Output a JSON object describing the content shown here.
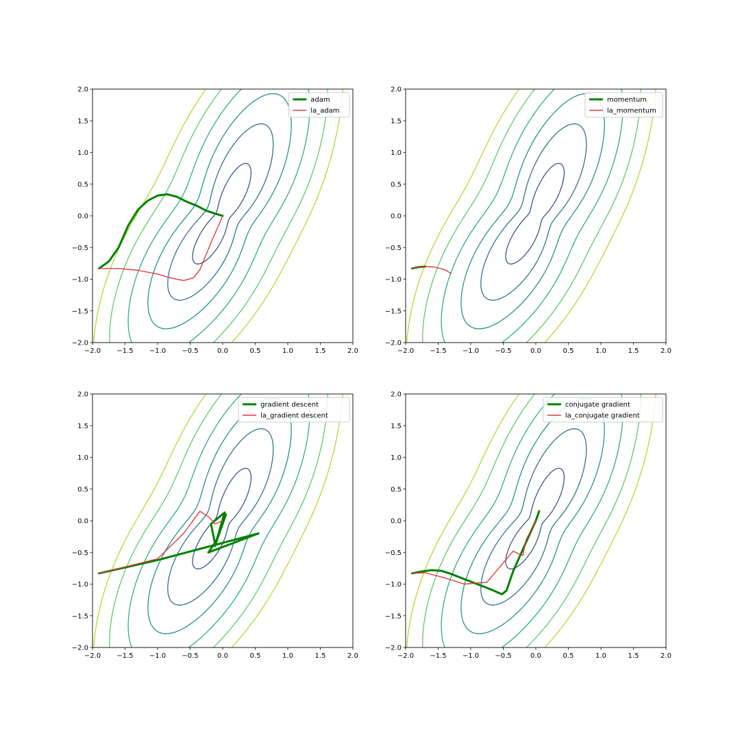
{
  "chart_data": [
    {
      "type": "line",
      "subtype": "contour-with-trajectories",
      "xlim": [
        -2.0,
        2.0
      ],
      "ylim": [
        -2.0,
        2.0
      ],
      "xticks": [
        "−2.0",
        "−1.5",
        "−1.0",
        "−0.5",
        "0.0",
        "0.5",
        "1.0",
        "1.5",
        "2.0"
      ],
      "yticks": [
        "−2.0",
        "−1.5",
        "−1.0",
        "−0.5",
        "0.0",
        "0.5",
        "1.0",
        "1.5",
        "2.0"
      ],
      "grid": false,
      "legend_position": "top-right",
      "series": [
        {
          "name": "adam",
          "color": "#008000",
          "points": [
            [
              -1.9,
              -0.83
            ],
            [
              -1.75,
              -0.72
            ],
            [
              -1.6,
              -0.5
            ],
            [
              -1.45,
              -0.15
            ],
            [
              -1.3,
              0.1
            ],
            [
              -1.15,
              0.24
            ],
            [
              -1.0,
              0.32
            ],
            [
              -0.85,
              0.34
            ],
            [
              -0.7,
              0.3
            ],
            [
              -0.55,
              0.22
            ],
            [
              -0.4,
              0.16
            ],
            [
              -0.25,
              0.08
            ],
            [
              -0.1,
              0.03
            ],
            [
              0.0,
              0.0
            ]
          ]
        },
        {
          "name": "la_adam",
          "color": "#e03a3a",
          "points": [
            [
              -1.9,
              -0.83
            ],
            [
              -1.6,
              -0.83
            ],
            [
              -1.3,
              -0.86
            ],
            [
              -1.0,
              -0.92
            ],
            [
              -0.8,
              -0.98
            ],
            [
              -0.6,
              -1.02
            ],
            [
              -0.45,
              -0.98
            ],
            [
              -0.35,
              -0.85
            ],
            [
              -0.25,
              -0.6
            ],
            [
              -0.15,
              -0.35
            ],
            [
              -0.05,
              -0.12
            ],
            [
              0.0,
              0.0
            ]
          ]
        }
      ]
    },
    {
      "type": "line",
      "subtype": "contour-with-trajectories",
      "xlim": [
        -2.0,
        2.0
      ],
      "ylim": [
        -2.0,
        2.0
      ],
      "xticks": [
        "−2.0",
        "−1.5",
        "−1.0",
        "−0.5",
        "0.0",
        "0.5",
        "1.0",
        "1.5",
        "2.0"
      ],
      "yticks": [
        "−2.0",
        "−1.5",
        "−1.0",
        "−0.5",
        "0.0",
        "0.5",
        "1.0",
        "1.5",
        "2.0"
      ],
      "grid": false,
      "legend_position": "top-right",
      "series": [
        {
          "name": "momentum",
          "color": "#008000",
          "points": [
            [
              -1.9,
              -0.83
            ],
            [
              -1.8,
              -0.81
            ],
            [
              -1.7,
              -0.8
            ]
          ]
        },
        {
          "name": "la_momentum",
          "color": "#e03a3a",
          "points": [
            [
              -1.9,
              -0.83
            ],
            [
              -1.7,
              -0.8
            ],
            [
              -1.55,
              -0.81
            ],
            [
              -1.4,
              -0.85
            ],
            [
              -1.3,
              -0.91
            ]
          ]
        }
      ]
    },
    {
      "type": "line",
      "subtype": "contour-with-trajectories",
      "xlim": [
        -2.0,
        2.0
      ],
      "ylim": [
        -2.0,
        2.0
      ],
      "xticks": [
        "−2.0",
        "−1.5",
        "−1.0",
        "−0.5",
        "0.0",
        "0.5",
        "1.0",
        "1.5",
        "2.0"
      ],
      "yticks": [
        "−2.0",
        "−1.5",
        "−1.0",
        "−0.5",
        "0.0",
        "0.5",
        "1.0",
        "1.5",
        "2.0"
      ],
      "grid": false,
      "legend_position": "top-right",
      "series": [
        {
          "name": "gradient descent",
          "color": "#008000",
          "points": [
            [
              -1.9,
              -0.83
            ],
            [
              -1.0,
              -0.62
            ],
            [
              0.55,
              -0.2
            ],
            [
              -0.22,
              -0.5
            ],
            [
              -0.12,
              -0.35
            ],
            [
              -0.18,
              -0.05
            ],
            [
              0.03,
              0.13
            ],
            [
              -0.12,
              -0.4
            ],
            [
              0.05,
              0.1
            ],
            [
              0.0,
              0.0
            ]
          ]
        },
        {
          "name": "la_gradient descent",
          "color": "#e03a3a",
          "points": [
            [
              -1.9,
              -0.83
            ],
            [
              -1.0,
              -0.6
            ],
            [
              -0.6,
              -0.2
            ],
            [
              -0.35,
              0.15
            ],
            [
              -0.2,
              0.05
            ],
            [
              -0.12,
              -0.05
            ],
            [
              -0.05,
              -0.02
            ],
            [
              0.0,
              0.0
            ]
          ]
        }
      ]
    },
    {
      "type": "line",
      "subtype": "contour-with-trajectories",
      "xlim": [
        -2.0,
        2.0
      ],
      "ylim": [
        -2.0,
        2.0
      ],
      "xticks": [
        "−2.0",
        "−1.5",
        "−1.0",
        "−0.5",
        "0.0",
        "0.5",
        "1.0",
        "1.5",
        "2.0"
      ],
      "yticks": [
        "−2.0",
        "−1.5",
        "−1.0",
        "−0.5",
        "0.0",
        "0.5",
        "1.0",
        "1.5",
        "2.0"
      ],
      "grid": false,
      "legend_position": "top-right",
      "series": [
        {
          "name": "conjugate gradient",
          "color": "#008000",
          "points": [
            [
              -1.9,
              -0.83
            ],
            [
              -1.75,
              -0.8
            ],
            [
              -1.6,
              -0.78
            ],
            [
              -1.45,
              -0.79
            ],
            [
              -1.3,
              -0.84
            ],
            [
              -1.1,
              -0.92
            ],
            [
              -0.9,
              -1.0
            ],
            [
              -0.7,
              -1.08
            ],
            [
              -0.52,
              -1.16
            ],
            [
              -0.45,
              -1.1
            ],
            [
              -0.35,
              -0.8
            ],
            [
              -0.22,
              -0.5
            ],
            [
              -0.08,
              -0.18
            ],
            [
              0.0,
              0.0
            ],
            [
              0.05,
              0.15
            ]
          ]
        },
        {
          "name": "la_conjugate gradient",
          "color": "#e03a3a",
          "points": [
            [
              -1.9,
              -0.83
            ],
            [
              -1.7,
              -0.82
            ],
            [
              -1.4,
              -0.9
            ],
            [
              -1.1,
              -1.0
            ],
            [
              -0.75,
              -0.97
            ],
            [
              -0.35,
              -0.48
            ],
            [
              -0.2,
              -0.55
            ],
            [
              -0.15,
              -0.3
            ],
            [
              -0.05,
              -0.1
            ],
            [
              0.0,
              0.0
            ]
          ]
        }
      ]
    }
  ],
  "contour": {
    "levels": [
      0.2,
      0.5,
      0.9,
      1.5,
      2.3,
      3.2
    ],
    "colors": [
      "#440154",
      "#3b528b",
      "#2c728e",
      "#21918c",
      "#28ae80",
      "#5ec962",
      "#addc30"
    ]
  }
}
